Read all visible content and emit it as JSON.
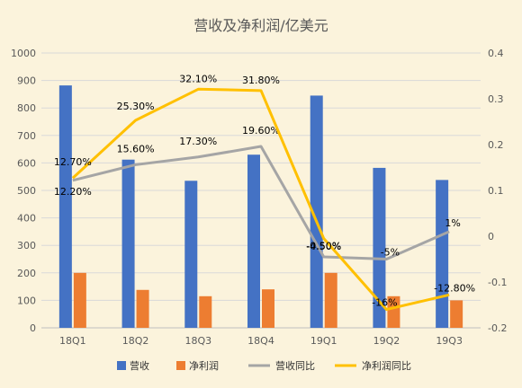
{
  "chart_data": {
    "type": "bar",
    "title": "营收及净利润/亿美元",
    "categories": [
      "18Q1",
      "18Q2",
      "18Q3",
      "18Q4",
      "19Q1",
      "19Q2",
      "19Q3"
    ],
    "ylim": [
      0,
      1000
    ],
    "y2lim": [
      -0.2,
      0.4
    ],
    "y_ticks": [
      "0",
      "100",
      "200",
      "300",
      "400",
      "500",
      "600",
      "700",
      "800",
      "900",
      "1000"
    ],
    "y2_ticks": [
      "-0.2",
      "-0.1",
      "0",
      "0.1",
      "0.2",
      "0.3",
      "0.4"
    ],
    "grid": true,
    "legend_position": "bottom",
    "series": [
      {
        "name": "营收",
        "type": "bar",
        "axis": "left",
        "color": "#4472c4",
        "values": [
          882,
          612,
          535,
          630,
          845,
          582,
          538
        ]
      },
      {
        "name": "净利润",
        "type": "bar",
        "axis": "left",
        "color": "#ed7d31",
        "values": [
          200,
          138,
          115,
          140,
          200,
          115,
          100
        ]
      },
      {
        "name": "营收同比",
        "type": "line",
        "axis": "right",
        "color": "#a5a5a5",
        "values": [
          0.122,
          0.156,
          0.173,
          0.196,
          -0.045,
          -0.05,
          0.01
        ],
        "labels": [
          "12.20%",
          "15.60%",
          "17.30%",
          "19.60%",
          "-4.50%",
          "-5%",
          "1%"
        ]
      },
      {
        "name": "净利润同比",
        "type": "line",
        "axis": "right",
        "color": "#ffc000",
        "values": [
          0.127,
          0.253,
          0.321,
          0.318,
          -0.005,
          -0.16,
          -0.128
        ],
        "labels": [
          "12.70%",
          "25.30%",
          "32.10%",
          "31.80%",
          "-0.50%",
          "-16%",
          "-12.80%"
        ]
      }
    ]
  }
}
